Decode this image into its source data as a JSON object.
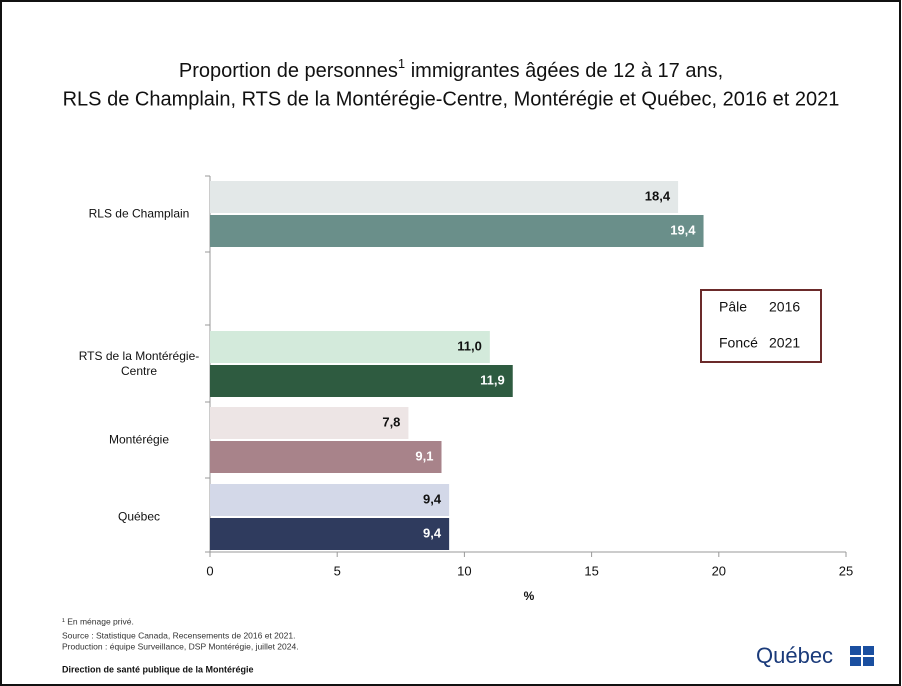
{
  "chart_data": {
    "type": "bar",
    "orientation": "horizontal",
    "title": {
      "line1": "Proportion de personnes",
      "note_mark": "1",
      "line1_rest": " immigrantes âgées de 12 à 17 ans,",
      "line2": "RLS de Champlain, RTS de la Montérégie-Centre, Montérégie et Québec, 2016 et 2021"
    },
    "categories": [
      "RLS de Champlain",
      "RTS de la Montérégie-Centre",
      "Montérégie",
      "Québec"
    ],
    "series": [
      {
        "name": "2016",
        "shade": "Pâle",
        "colors": [
          "#e3e8e8",
          "#d3eadb",
          "#ede5e5",
          "#d3d8e8"
        ],
        "label_color": "#111111",
        "values": [
          18.4,
          11.0,
          7.8,
          9.4
        ],
        "value_labels": [
          "18,4",
          "11,0",
          "7,8",
          "9,4"
        ]
      },
      {
        "name": "2021",
        "shade": "Foncé",
        "colors": [
          "#6a8f8a",
          "#2e5b40",
          "#a8838a",
          "#2f3b5e"
        ],
        "label_color": "#ffffff",
        "values": [
          19.4,
          11.9,
          9.1,
          9.4
        ],
        "value_labels": [
          "19,4",
          "11,9",
          "9,1",
          "9,4"
        ]
      }
    ],
    "xlabel": "%",
    "xlim": [
      0,
      25
    ],
    "xticks": [
      0,
      5,
      10,
      15,
      20,
      25
    ],
    "grid": false,
    "legend": "right",
    "footnotes": [
      "¹ En ménage privé.",
      "Source : Statistique Canada, Recensements de 2016 et 2021.",
      "Production : équipe Surveillance, DSP Montérégie, juillet 2024."
    ],
    "organization": "Direction de santé publique de la Montérégie",
    "logo": "Québec"
  }
}
